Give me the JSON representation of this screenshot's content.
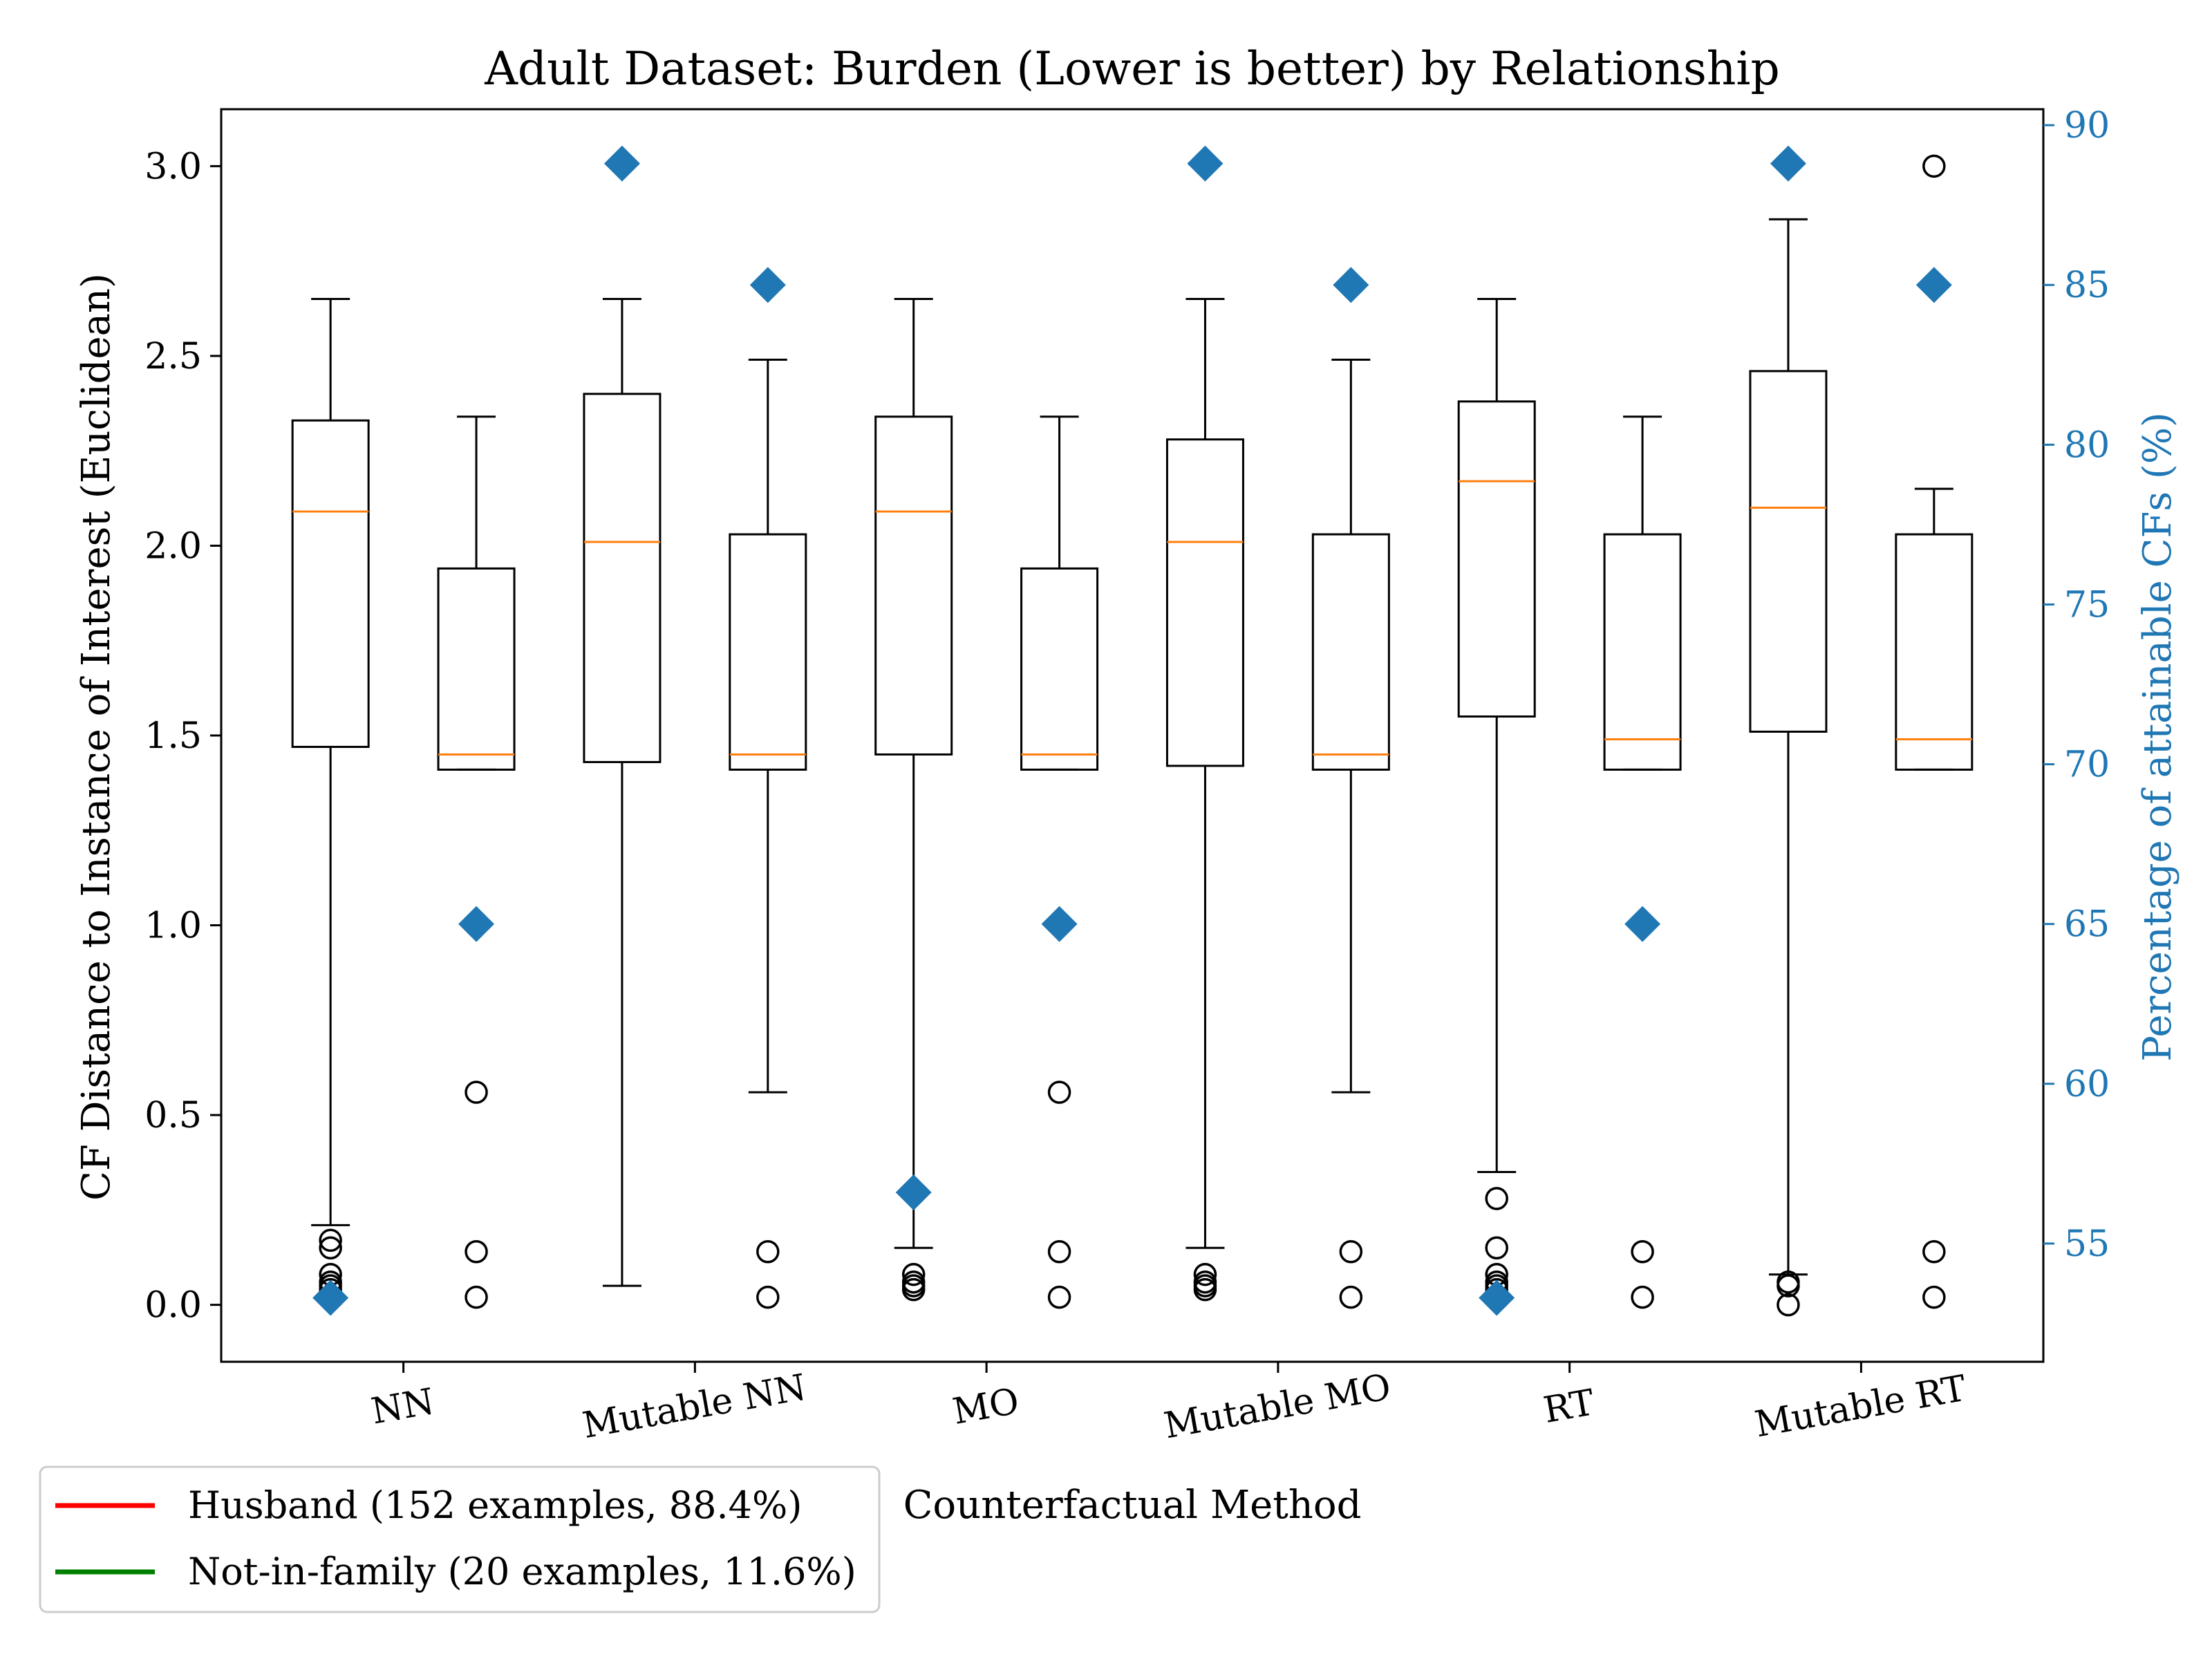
{
  "chart_data": {
    "type": "box",
    "title": "Adult Dataset: Burden (Lower is better) by Relationship",
    "xlabel": "Counterfactual Method",
    "ylabel": "CF Distance to Instance of Interest (Euclidean)",
    "y2label": "Percentage of attainable CFs (%)",
    "ylim": [
      -0.15,
      3.15
    ],
    "y2lim": [
      51.3,
      90.5
    ],
    "yticks": [
      "0.0",
      "0.5",
      "1.0",
      "1.5",
      "2.0",
      "2.5",
      "3.0"
    ],
    "y2ticks": [
      "55",
      "60",
      "65",
      "70",
      "75",
      "80",
      "85",
      "90"
    ],
    "categories": [
      "NN",
      "Mutable NN",
      "MO",
      "Mutable MO",
      "RT",
      "Mutable RT"
    ],
    "legend_position": "bottom-left",
    "legend": [
      {
        "label": "Husband (152 examples, 88.4%)",
        "color": "#ff0000"
      },
      {
        "label": "Not-in-family (20 examples, 11.6%)",
        "color": "#008000"
      }
    ],
    "colors": {
      "box": "#000000",
      "median": "#ff7f0e",
      "marker": "#1f77b4"
    },
    "boxes": [
      {
        "x": 1,
        "q1": 1.47,
        "median": 2.09,
        "q3": 2.33,
        "whislo": 0.21,
        "whishi": 2.65,
        "fliers": [
          0.17,
          0.15,
          0.08,
          0.06,
          0.05,
          0.04
        ]
      },
      {
        "x": 2,
        "q1": 1.41,
        "median": 1.45,
        "q3": 1.94,
        "whislo": 1.41,
        "whishi": 2.34,
        "fliers": [
          0.56,
          0.14,
          0.02
        ]
      },
      {
        "x": 3,
        "q1": 1.43,
        "median": 2.01,
        "q3": 2.4,
        "whislo": 0.05,
        "whishi": 2.65,
        "fliers": []
      },
      {
        "x": 4,
        "q1": 1.41,
        "median": 1.45,
        "q3": 2.03,
        "whislo": 0.56,
        "whishi": 2.49,
        "fliers": [
          0.14,
          0.02
        ]
      },
      {
        "x": 5,
        "q1": 1.45,
        "median": 2.09,
        "q3": 2.34,
        "whislo": 0.15,
        "whishi": 2.65,
        "fliers": [
          0.08,
          0.06,
          0.05,
          0.04
        ]
      },
      {
        "x": 6,
        "q1": 1.41,
        "median": 1.45,
        "q3": 1.94,
        "whislo": 1.41,
        "whishi": 2.34,
        "fliers": [
          0.56,
          0.14,
          0.02
        ]
      },
      {
        "x": 7,
        "q1": 1.42,
        "median": 2.01,
        "q3": 2.28,
        "whislo": 0.15,
        "whishi": 2.65,
        "fliers": [
          0.08,
          0.06,
          0.05,
          0.04
        ]
      },
      {
        "x": 8,
        "q1": 1.41,
        "median": 1.45,
        "q3": 2.03,
        "whislo": 0.56,
        "whishi": 2.49,
        "fliers": [
          0.14,
          0.02
        ]
      },
      {
        "x": 9,
        "q1": 1.55,
        "median": 2.17,
        "q3": 2.38,
        "whislo": 0.35,
        "whishi": 2.65,
        "fliers": [
          0.28,
          0.15,
          0.08,
          0.06,
          0.05,
          0.04
        ]
      },
      {
        "x": 10,
        "q1": 1.41,
        "median": 1.49,
        "q3": 2.03,
        "whislo": 1.41,
        "whishi": 2.34,
        "fliers": [
          0.14,
          0.02
        ]
      },
      {
        "x": 11,
        "q1": 1.51,
        "median": 2.1,
        "q3": 2.46,
        "whislo": 0.08,
        "whishi": 2.86,
        "fliers": [
          0.06,
          0.05,
          0.0
        ]
      },
      {
        "x": 12,
        "q1": 1.41,
        "median": 1.49,
        "q3": 2.03,
        "whislo": 1.41,
        "whishi": 2.15,
        "fliers": [
          3.0,
          0.14,
          0.02
        ]
      }
    ],
    "percent_markers": [
      {
        "x": 1,
        "value": 53.3
      },
      {
        "x": 2,
        "value": 65.0
      },
      {
        "x": 3,
        "value": 88.8
      },
      {
        "x": 4,
        "value": 85.0
      },
      {
        "x": 5,
        "value": 56.6
      },
      {
        "x": 6,
        "value": 65.0
      },
      {
        "x": 7,
        "value": 88.8
      },
      {
        "x": 8,
        "value": 85.0
      },
      {
        "x": 9,
        "value": 53.3
      },
      {
        "x": 10,
        "value": 65.0
      },
      {
        "x": 11,
        "value": 88.8
      },
      {
        "x": 12,
        "value": 85.0
      }
    ]
  }
}
